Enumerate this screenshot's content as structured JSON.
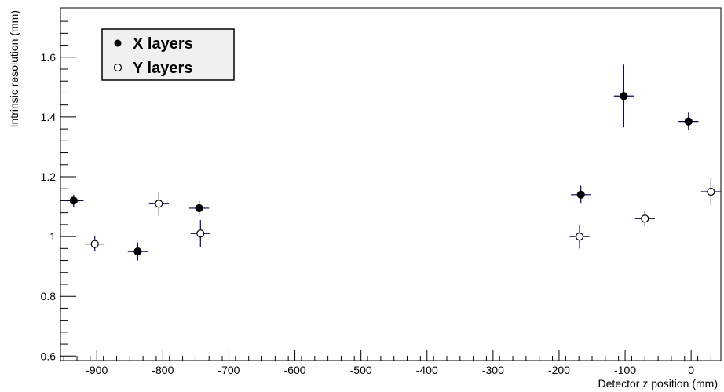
{
  "chart_data": {
    "type": "scatter",
    "title": "",
    "xlabel": "Detector z position (mm)",
    "ylabel": "Intrinsic resolution (mm)",
    "xlim": [
      -955,
      45
    ],
    "ylim": [
      0.585,
      1.765
    ],
    "x_ticks": [
      -900,
      -800,
      -700,
      -600,
      -500,
      -400,
      -300,
      -200,
      -100,
      0
    ],
    "x_tick_labels": [
      "-900",
      "-800",
      "-700",
      "-600",
      "-500",
      "-400",
      "-300",
      "-200",
      "-100",
      "0"
    ],
    "y_ticks": [
      0.6,
      0.8,
      1.0,
      1.2,
      1.4,
      1.6
    ],
    "y_tick_labels": [
      "0.6",
      "0.8",
      "1",
      "1.2",
      "1.4",
      "1.6"
    ],
    "grid": false,
    "legend_position": "top-left",
    "error_bar_color": "#000080",
    "series": [
      {
        "name": "X layers",
        "marker": "filled-circle",
        "points": [
          {
            "x": -935,
            "y": 1.12,
            "xerr": 15,
            "yerr": 0.02
          },
          {
            "x": -838,
            "y": 0.95,
            "xerr": 15,
            "yerr": 0.03
          },
          {
            "x": -745,
            "y": 1.095,
            "xerr": 15,
            "yerr": 0.025
          },
          {
            "x": -167,
            "y": 1.14,
            "xerr": 15,
            "yerr": 0.03
          },
          {
            "x": -102,
            "y": 1.47,
            "xerr": 15,
            "yerr": 0.105
          },
          {
            "x": -4,
            "y": 1.385,
            "xerr": 15,
            "yerr": 0.03
          }
        ]
      },
      {
        "name": "Y layers",
        "marker": "open-circle",
        "points": [
          {
            "x": -903,
            "y": 0.975,
            "xerr": 15,
            "yerr": 0.025
          },
          {
            "x": -806,
            "y": 1.11,
            "xerr": 15,
            "yerr": 0.04
          },
          {
            "x": -743,
            "y": 1.01,
            "xerr": 15,
            "yerr": 0.045
          },
          {
            "x": -169,
            "y": 1.0,
            "xerr": 15,
            "yerr": 0.04
          },
          {
            "x": -70,
            "y": 1.06,
            "xerr": 15,
            "yerr": 0.025
          },
          {
            "x": 30,
            "y": 1.15,
            "xerr": 15,
            "yerr": 0.045
          }
        ]
      }
    ]
  }
}
